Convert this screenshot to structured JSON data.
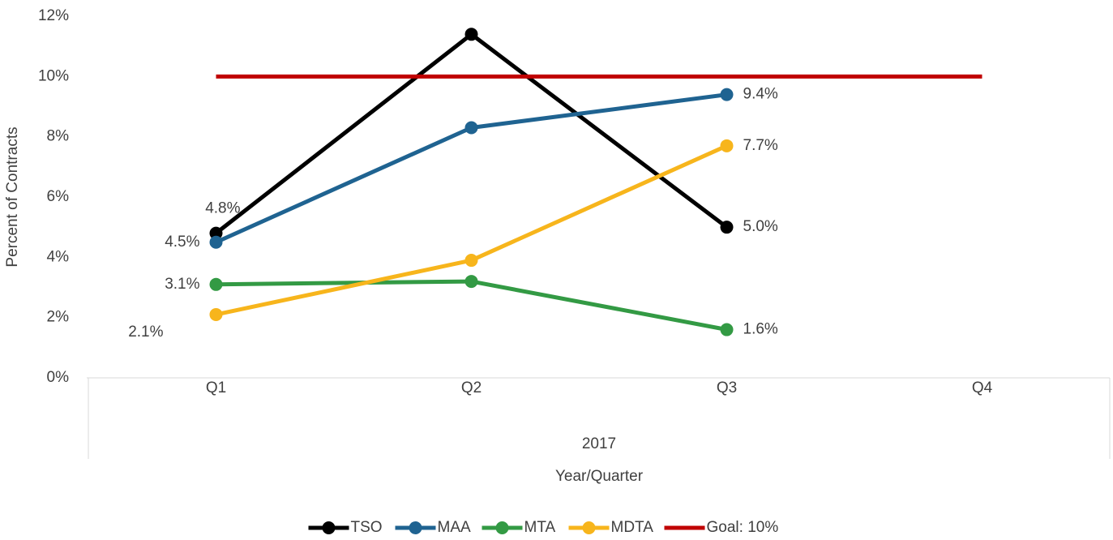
{
  "chart_data": {
    "type": "line",
    "y_axis_label": "Percent of Contracts",
    "x_axis_label": "Year/Quarter",
    "group_label": "2017",
    "categories": [
      "Q1",
      "Q2",
      "Q3",
      "Q4"
    ],
    "ylim": [
      0,
      12
    ],
    "yticks": [
      {
        "value": 0,
        "label": "0%"
      },
      {
        "value": 2,
        "label": "2%"
      },
      {
        "value": 4,
        "label": "4%"
      },
      {
        "value": 6,
        "label": "6%"
      },
      {
        "value": 8,
        "label": "8%"
      },
      {
        "value": 10,
        "label": "10%"
      },
      {
        "value": 12,
        "label": "12%"
      }
    ],
    "grid": false,
    "legend": "bottom",
    "series": [
      {
        "name": "TSO",
        "color": "#000000",
        "values": [
          4.8,
          11.4,
          5.0,
          null
        ],
        "value_labels": [
          "4.8%",
          null,
          "5.0%",
          null
        ],
        "markers": true
      },
      {
        "name": "MAA",
        "color": "#1f6391",
        "values": [
          4.5,
          8.3,
          9.4,
          null
        ],
        "value_labels": [
          "4.5%",
          null,
          "9.4%",
          null
        ],
        "markers": true
      },
      {
        "name": "MTA",
        "color": "#339a44",
        "values": [
          3.1,
          3.2,
          1.6,
          null
        ],
        "value_labels": [
          "3.1%",
          null,
          "1.6%",
          null
        ],
        "markers": true
      },
      {
        "name": "MDTA",
        "color": "#f7b51c",
        "values": [
          2.1,
          3.9,
          7.7,
          null
        ],
        "value_labels": [
          "2.1%",
          null,
          "7.7%",
          null
        ],
        "markers": true
      },
      {
        "name": "Goal: 10%",
        "color": "#c00000",
        "values": [
          10,
          10,
          10,
          10
        ],
        "markers": false
      }
    ]
  }
}
